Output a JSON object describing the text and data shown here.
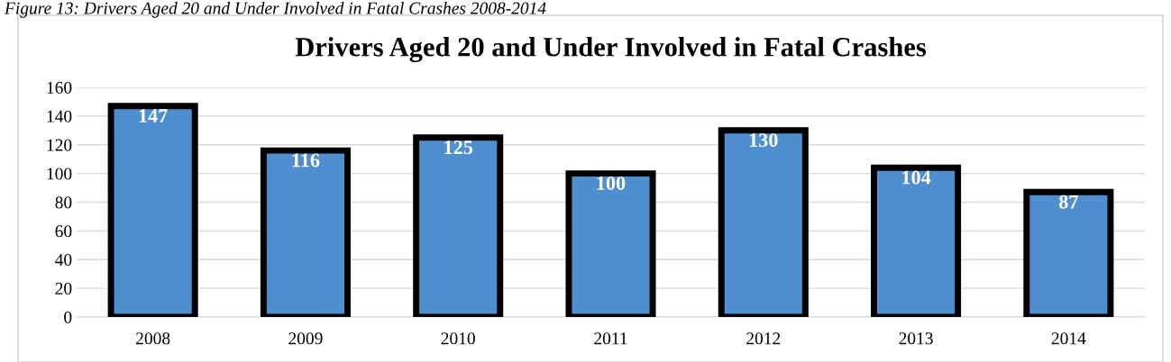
{
  "chart_data": {
    "type": "bar",
    "title": "Drivers Aged 20 and Under Involved in Fatal Crashes",
    "annotations": [
      "Figure 13: Drivers Aged 20 and Under Involved in Fatal Crashes 2008-2014"
    ],
    "categories": [
      "2008",
      "2009",
      "2010",
      "2011",
      "2012",
      "2013",
      "2014"
    ],
    "values": [
      147,
      116,
      125,
      100,
      130,
      104,
      87
    ],
    "color": "#4f8fd0",
    "ylim": [
      0,
      160
    ],
    "yticks": [
      0,
      20,
      40,
      60,
      80,
      100,
      120,
      140,
      160
    ],
    "grid": "y",
    "data_labels": true
  }
}
